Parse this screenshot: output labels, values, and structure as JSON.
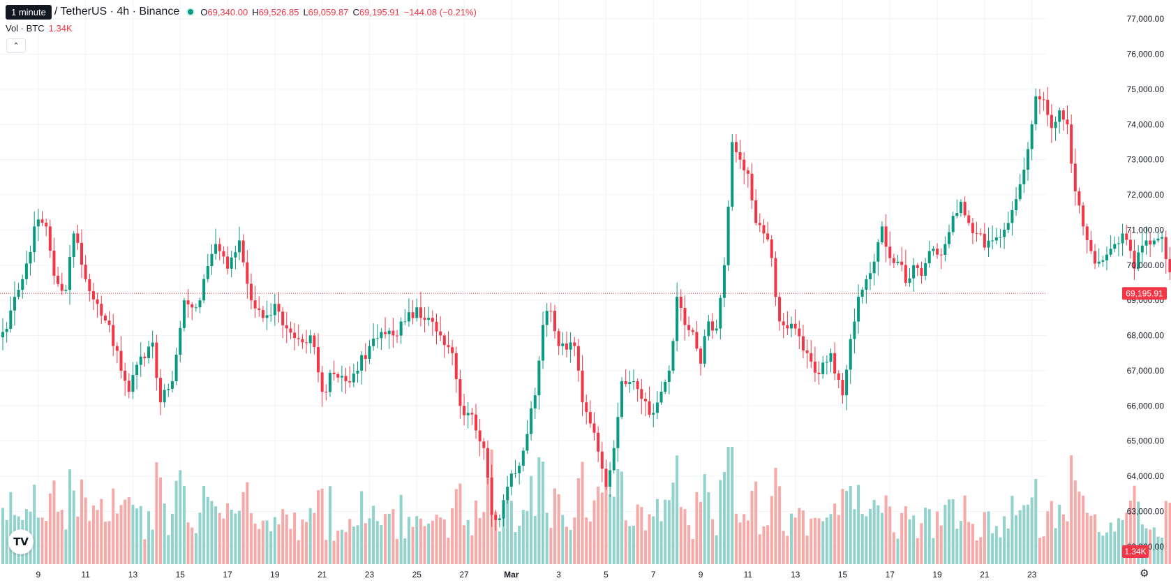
{
  "header": {
    "tooltip": "1 minute",
    "symbol": "/ TetherUS · 4h · Binance",
    "ohlc": [
      {
        "label": "O",
        "value": "69,340.00"
      },
      {
        "label": "H",
        "value": "69,526.85"
      },
      {
        "label": "L",
        "value": "69,059.87"
      },
      {
        "label": "C",
        "value": "69,195.91"
      }
    ],
    "change": "−144.08 (−0.21%)",
    "volume_label": "Vol · BTC",
    "volume_value": "1.34K",
    "collapse_icon": "chevron-up-icon"
  },
  "colors": {
    "up": "#089981",
    "down": "#f23645",
    "up_volume": "#92d2cc",
    "down_volume": "#f7a9a7",
    "grid": "#f0f3fa",
    "text": "#131722"
  },
  "chart_data": {
    "type": "candlestick",
    "symbol": "BTC / TetherUS",
    "interval": "4h",
    "exchange": "Binance",
    "price_axis": {
      "range": [
        61500,
        77300
      ],
      "ticks": [
        62000,
        63000,
        64000,
        65000,
        66000,
        67000,
        68000,
        69000,
        70000,
        71000,
        72000,
        73000,
        74000,
        75000,
        76000,
        77000
      ],
      "tick_labels": [
        "62,000.00",
        "63,000.00",
        "64,000.00",
        "65,000.00",
        "66,000.00",
        "67,000.00",
        "68,000.00",
        "69,000.00",
        "70,000.00",
        "71,000.00",
        "72,000.00",
        "73,000.00",
        "74,000.00",
        "75,000.00",
        "76,000.00",
        "77,000.00"
      ]
    },
    "time_axis": {
      "tick_labels": [
        "9",
        "11",
        "13",
        "15",
        "17",
        "19",
        "21",
        "23",
        "25",
        "27",
        "Mar",
        "3",
        "5",
        "7",
        "9",
        "11",
        "13",
        "15",
        "17",
        "19",
        "21",
        "23"
      ],
      "bars_per_tick": 12
    },
    "last_price": {
      "value": 69195.91,
      "label": "69,195.91"
    },
    "last_volume": {
      "label": "1.34K"
    },
    "volume_scale_max": 4000,
    "anchors": [
      [
        0,
        68100
      ],
      [
        4,
        69300
      ],
      [
        9,
        71300
      ],
      [
        11,
        71100
      ],
      [
        13,
        69700
      ],
      [
        16,
        69300
      ],
      [
        18,
        70900
      ],
      [
        21,
        69600
      ],
      [
        24,
        68900
      ],
      [
        27,
        68300
      ],
      [
        30,
        67000
      ],
      [
        32,
        66400
      ],
      [
        35,
        67400
      ],
      [
        38,
        67800
      ],
      [
        40,
        66100
      ],
      [
        43,
        66700
      ],
      [
        46,
        69000
      ],
      [
        50,
        69000
      ],
      [
        54,
        70600
      ],
      [
        57,
        69900
      ],
      [
        60,
        70700
      ],
      [
        63,
        69000
      ],
      [
        66,
        68500
      ],
      [
        69,
        68900
      ],
      [
        72,
        68200
      ],
      [
        75,
        67900
      ],
      [
        78,
        68000
      ],
      [
        81,
        66400
      ],
      [
        84,
        66900
      ],
      [
        87,
        66700
      ],
      [
        90,
        67000
      ],
      [
        93,
        67700
      ],
      [
        96,
        68100
      ],
      [
        99,
        68000
      ],
      [
        102,
        68400
      ],
      [
        105,
        68800
      ],
      [
        108,
        68500
      ],
      [
        111,
        68000
      ],
      [
        114,
        67500
      ],
      [
        116,
        66000
      ],
      [
        118,
        65800
      ],
      [
        120,
        65300
      ],
      [
        122,
        64800
      ],
      [
        124,
        62900
      ],
      [
        126,
        62800
      ],
      [
        128,
        63700
      ],
      [
        131,
        64300
      ],
      [
        133,
        65200
      ],
      [
        135,
        66300
      ],
      [
        137,
        68300
      ],
      [
        139,
        68700
      ],
      [
        141,
        67700
      ],
      [
        143,
        67600
      ],
      [
        145,
        67700
      ],
      [
        147,
        66100
      ],
      [
        149,
        65500
      ],
      [
        151,
        64700
      ],
      [
        153,
        63700
      ],
      [
        155,
        64800
      ],
      [
        157,
        66700
      ],
      [
        160,
        66700
      ],
      [
        162,
        66200
      ],
      [
        165,
        65800
      ],
      [
        167,
        66400
      ],
      [
        169,
        67000
      ],
      [
        171,
        69100
      ],
      [
        173,
        68300
      ],
      [
        175,
        68100
      ],
      [
        177,
        67200
      ],
      [
        179,
        68400
      ],
      [
        181,
        68200
      ],
      [
        183,
        70000
      ],
      [
        185,
        73500
      ],
      [
        187,
        73000
      ],
      [
        189,
        72600
      ],
      [
        191,
        71200
      ],
      [
        193,
        70900
      ],
      [
        195,
        70200
      ],
      [
        197,
        68400
      ],
      [
        199,
        68200
      ],
      [
        201,
        68200
      ],
      [
        204,
        67500
      ],
      [
        207,
        66900
      ],
      [
        210,
        67500
      ],
      [
        213,
        66300
      ],
      [
        215,
        67900
      ],
      [
        217,
        69100
      ],
      [
        219,
        69600
      ],
      [
        221,
        70100
      ],
      [
        223,
        71100
      ],
      [
        225,
        70200
      ],
      [
        227,
        70100
      ],
      [
        229,
        69500
      ],
      [
        231,
        70000
      ],
      [
        233,
        69700
      ],
      [
        235,
        70400
      ],
      [
        237,
        70300
      ],
      [
        239,
        70600
      ],
      [
        241,
        71400
      ],
      [
        243,
        71800
      ],
      [
        245,
        71200
      ],
      [
        247,
        70900
      ],
      [
        249,
        70500
      ],
      [
        251,
        70700
      ],
      [
        253,
        70800
      ],
      [
        255,
        71200
      ],
      [
        258,
        72300
      ],
      [
        260,
        73300
      ],
      [
        262,
        74800
      ],
      [
        264,
        74700
      ],
      [
        266,
        73900
      ],
      [
        268,
        74400
      ],
      [
        270,
        74000
      ],
      [
        272,
        72100
      ],
      [
        274,
        71100
      ],
      [
        276,
        70400
      ],
      [
        278,
        70100
      ],
      [
        280,
        70300
      ],
      [
        282,
        70600
      ],
      [
        284,
        70900
      ],
      [
        287,
        69900
      ],
      [
        290,
        70700
      ],
      [
        292,
        70700
      ],
      [
        294,
        70800
      ],
      [
        296,
        69800
      ],
      [
        297,
        69195.91
      ]
    ]
  }
}
